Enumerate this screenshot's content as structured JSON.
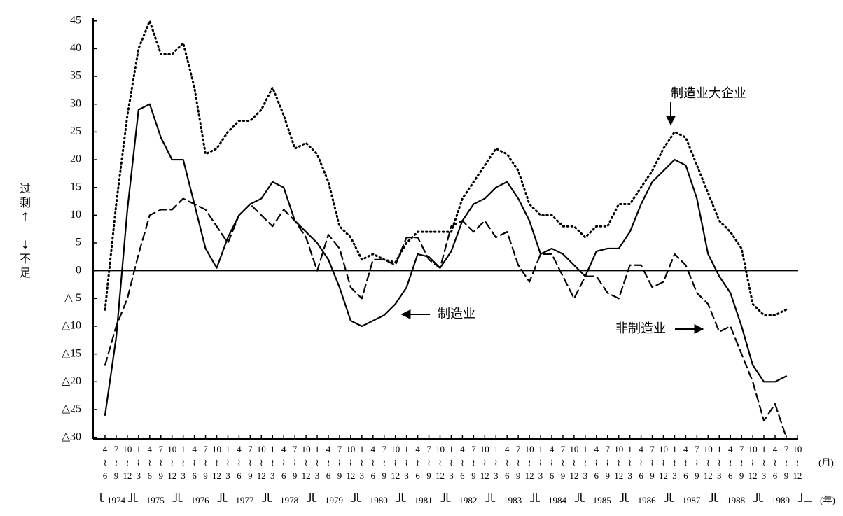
{
  "chart_data": {
    "type": "line",
    "y_label_upper": "过剩↑",
    "y_label_lower": "↓不足",
    "x_unit_month": "(月)",
    "x_unit_year": "(年)",
    "categories": [
      "4≀6",
      "7≀9",
      "10≀12",
      "1≀3",
      "4≀6",
      "7≀9",
      "10≀12",
      "1≀3",
      "4≀6",
      "7≀9",
      "10≀12",
      "1≀3",
      "4≀6",
      "7≀9",
      "10≀12",
      "1≀3",
      "4≀6",
      "7≀9",
      "10≀12",
      "1≀3",
      "4≀6",
      "7≀9",
      "10≀12",
      "1≀3",
      "4≀6",
      "7≀9",
      "10≀12",
      "1≀3",
      "4≀6",
      "7≀9",
      "10≀12",
      "1≀3",
      "4≀6",
      "7≀9",
      "10≀12",
      "1≀3",
      "4≀6",
      "7≀9",
      "10≀12",
      "1≀3",
      "4≀6",
      "7≀9",
      "10≀12",
      "1≀3",
      "4≀6",
      "7≀9",
      "10≀12",
      "1≀3",
      "4≀6",
      "7≀9",
      "10≀12",
      "1≀3",
      "4≀6",
      "7≀9",
      "10≀12",
      "1≀3",
      "4≀6",
      "7≀9",
      "10≀12",
      "1≀3",
      "4≀6",
      "7≀9",
      "10≀12"
    ],
    "years": [
      "1974",
      "1975",
      "1976",
      "1977",
      "1978",
      "1979",
      "1980",
      "1981",
      "1982",
      "1983",
      "1984",
      "1985",
      "1986",
      "1987",
      "1988",
      "1989"
    ],
    "series": [
      {
        "name": "制造业",
        "color": "#000000",
        "style": "solid",
        "values": [
          -26,
          -12,
          11,
          29,
          30,
          24,
          20,
          20,
          12,
          4,
          0.5,
          6,
          10,
          12,
          13,
          16,
          15,
          9,
          7,
          5,
          2,
          -3,
          -9,
          -10,
          -9,
          -8,
          -6,
          -3,
          3,
          2.5,
          0.5,
          3.5,
          9,
          12,
          13,
          15,
          16,
          13,
          9,
          3,
          4,
          3,
          1,
          -1,
          3.5,
          4,
          4,
          7,
          12,
          16,
          18,
          20,
          19,
          13,
          3,
          -1,
          -4,
          -10,
          -17,
          -20,
          -20,
          -19,
          null
        ]
      },
      {
        "name": "非制造业",
        "color": "#000000",
        "style": "dashed",
        "values": [
          -17,
          -10,
          -5,
          3,
          10,
          11,
          11,
          13,
          12,
          11,
          8,
          5,
          10,
          12,
          10,
          8,
          11,
          9,
          6,
          0,
          6.5,
          4,
          -3,
          -5,
          2,
          2,
          1,
          6,
          6,
          2,
          0.5,
          8,
          9,
          7,
          9,
          6,
          7,
          1,
          -2,
          3,
          3,
          -1,
          -5,
          -1,
          -1,
          -4,
          -5,
          1,
          1,
          -3,
          -2,
          3,
          1,
          -4,
          -6,
          -11,
          -10,
          -15,
          -20,
          -27,
          -24,
          -30,
          null
        ]
      },
      {
        "name": "制造业大企业",
        "color": "#000000",
        "style": "dotted",
        "values": [
          -7,
          12,
          28,
          40,
          45,
          39,
          39,
          41,
          33,
          21,
          22,
          25,
          27,
          27,
          29,
          33,
          28,
          22,
          23,
          21,
          16,
          8,
          6,
          2,
          3,
          2,
          1.5,
          5,
          7,
          7,
          7,
          7,
          13,
          16,
          19,
          22,
          21,
          18,
          12,
          10,
          10,
          8,
          8,
          6,
          8,
          8,
          12,
          12,
          15,
          18,
          22,
          25,
          24,
          19,
          14,
          9,
          7,
          4,
          -6,
          -8,
          -8,
          -7,
          null
        ]
      }
    ],
    "ylim": [
      -30.3,
      45.6
    ],
    "yticks": [
      45,
      40,
      35,
      30,
      25,
      20,
      15,
      10,
      5,
      0,
      {
        "value": -5,
        "label": "△ 5"
      },
      {
        "value": -10,
        "label": "△10"
      },
      {
        "value": -15,
        "label": "△15"
      },
      {
        "value": -20,
        "label": "△20"
      },
      {
        "value": -25,
        "label": "△25"
      },
      {
        "value": -30,
        "label": "△30"
      }
    ],
    "grid": false
  }
}
